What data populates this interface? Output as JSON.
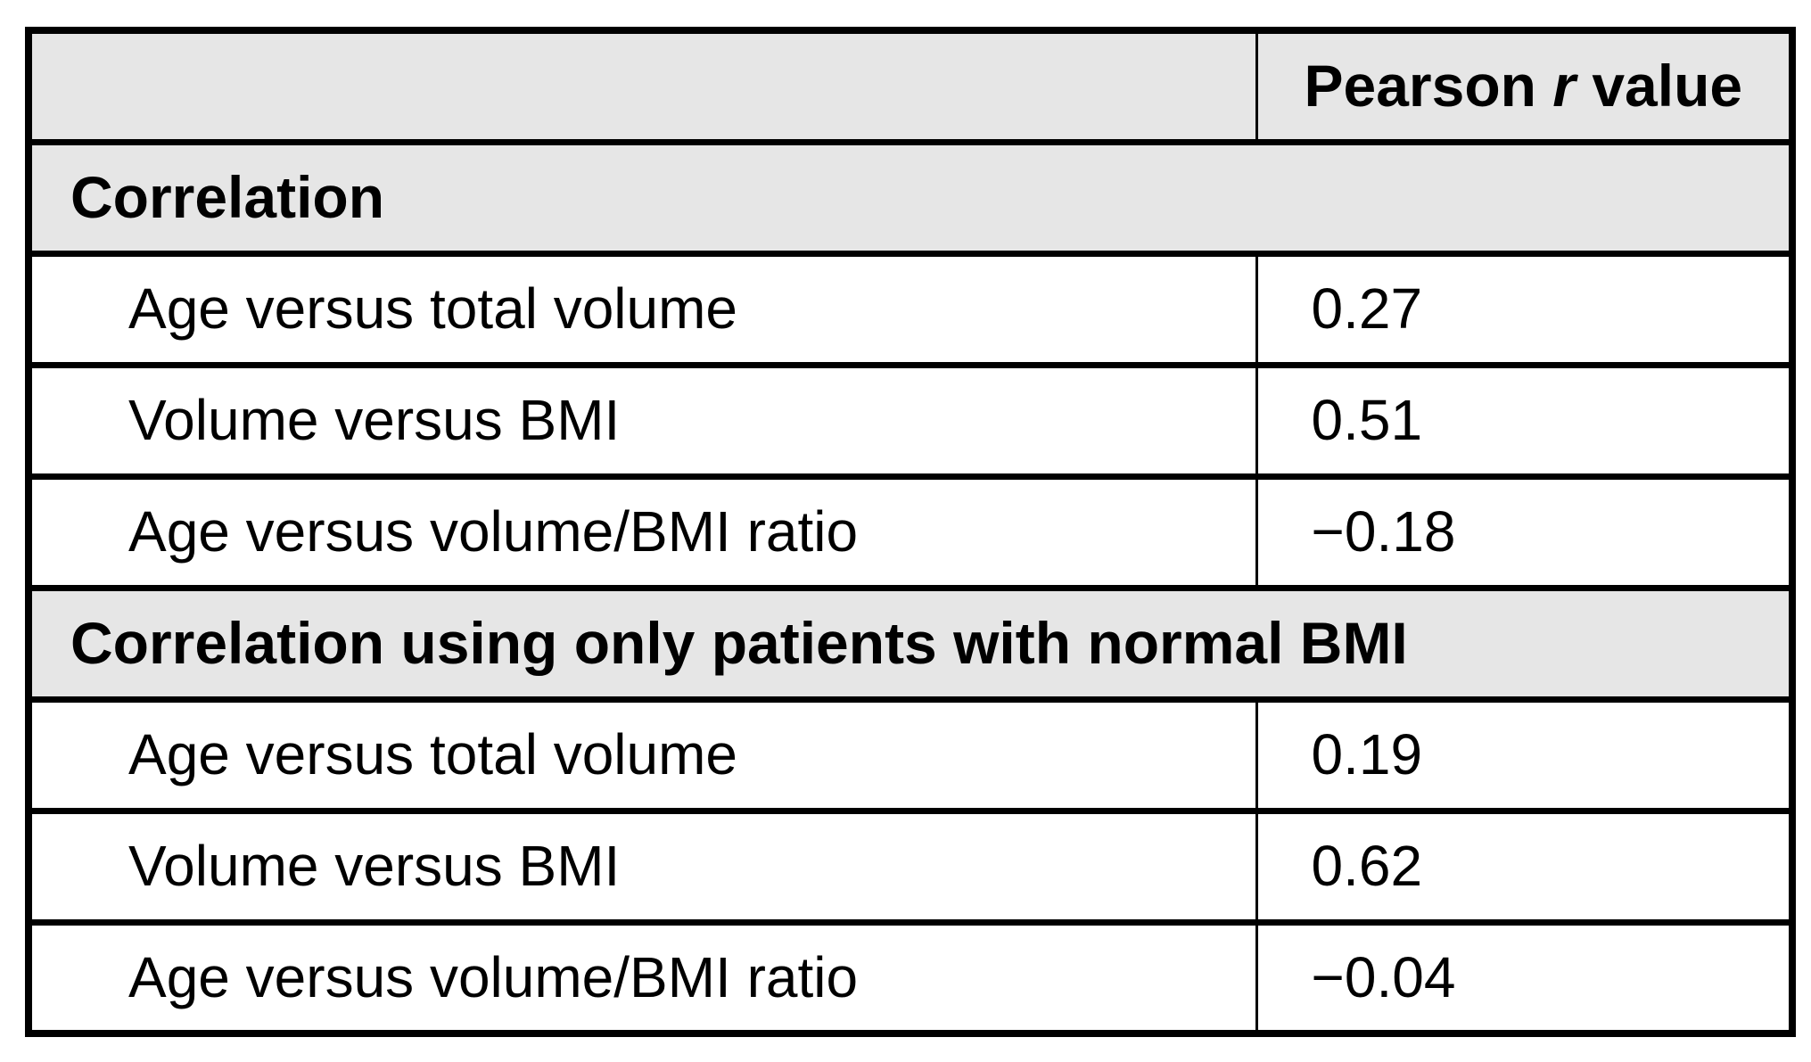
{
  "table": {
    "header": {
      "empty_cell": "",
      "pearson_prefix": "Pearson ",
      "pearson_italic": "r",
      "pearson_suffix": " value"
    },
    "sections": [
      {
        "title": "Correlation",
        "rows": [
          {
            "label": "Age versus total volume",
            "value": "0.27"
          },
          {
            "label": "Volume versus BMI",
            "value": "0.51"
          },
          {
            "label": "Age versus volume/BMI ratio",
            "value": "−0.18"
          }
        ]
      },
      {
        "title": "Correlation using only patients with normal BMI",
        "rows": [
          {
            "label": "Age versus total volume",
            "value": "0.19"
          },
          {
            "label": "Volume versus BMI",
            "value": "0.62"
          },
          {
            "label": "Age versus volume/BMI ratio",
            "value": "−0.04"
          }
        ]
      }
    ],
    "colors": {
      "section_bg": "#e6e6e6",
      "row_bg": "#ffffff",
      "border": "#000000",
      "text": "#000000"
    }
  },
  "chart_data": {
    "type": "table",
    "columns": [
      "",
      "Pearson r value"
    ],
    "rows": [
      {
        "kind": "section",
        "label": "Correlation",
        "value": null
      },
      {
        "kind": "data",
        "label": "Age versus total volume",
        "value": 0.27
      },
      {
        "kind": "data",
        "label": "Volume versus BMI",
        "value": 0.51
      },
      {
        "kind": "data",
        "label": "Age versus volume/BMI ratio",
        "value": -0.18
      },
      {
        "kind": "section",
        "label": "Correlation using only patients with normal BMI",
        "value": null
      },
      {
        "kind": "data",
        "label": "Age versus total volume",
        "value": 0.19
      },
      {
        "kind": "data",
        "label": "Volume versus BMI",
        "value": 0.62
      },
      {
        "kind": "data",
        "label": "Age versus volume/BMI ratio",
        "value": -0.04
      }
    ],
    "title": "",
    "legend": false,
    "grid": true
  }
}
